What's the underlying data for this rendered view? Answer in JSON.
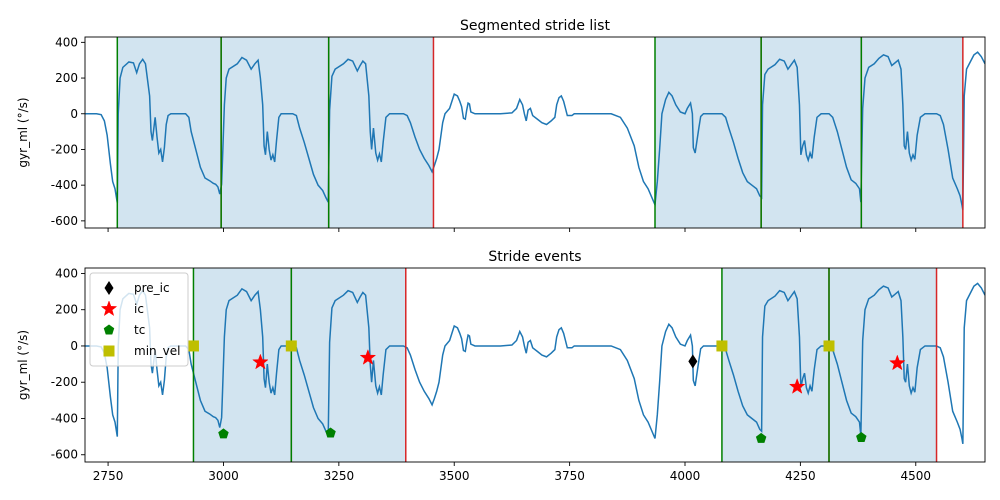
{
  "colors": {
    "signal": "#1f77b4",
    "stride_fill": "#1f77b4",
    "start_line": "#008000",
    "end_line": "#d62728",
    "pre_ic": "#000000",
    "ic": "#ff0000",
    "tc": "#008000",
    "min_vel": "#bfbf00"
  },
  "chart_data": [
    {
      "type": "line",
      "title": "Segmented stride list",
      "ylabel": "gyr_ml (°/s)",
      "xlabel": "",
      "xlim": [
        2700,
        4650
      ],
      "ylim": [
        -640,
        430
      ],
      "yticks": [
        400,
        200,
        0,
        -200,
        -400,
        -600
      ],
      "xticks": [
        2750,
        3000,
        3250,
        3500,
        3750,
        4000,
        4250,
        4500
      ],
      "show_xtick_labels": false,
      "grid": false,
      "strides": [
        {
          "start": 2770,
          "end": 2995
        },
        {
          "start": 2995,
          "end": 3228
        },
        {
          "start": 3228,
          "end": 3455
        },
        {
          "start": 3935,
          "end": 4165
        },
        {
          "start": 4165,
          "end": 4382
        },
        {
          "start": 4382,
          "end": 4602
        }
      ]
    },
    {
      "type": "line",
      "title": "Stride events",
      "ylabel": "gyr_ml (°/s)",
      "xlabel": "",
      "xlim": [
        2700,
        4650
      ],
      "ylim": [
        -640,
        430
      ],
      "yticks": [
        400,
        200,
        0,
        -200,
        -400,
        -600
      ],
      "xticks": [
        2750,
        3000,
        3250,
        3500,
        3750,
        4000,
        4250,
        4500
      ],
      "show_xtick_labels": true,
      "grid": false,
      "legend_placement": "upper-left",
      "legend": [
        "pre_ic",
        "ic",
        "tc",
        "min_vel"
      ],
      "strides": [
        {
          "start": 2935,
          "end": 3147
        },
        {
          "start": 3147,
          "end": 3395
        },
        {
          "start": 4080,
          "end": 4312
        },
        {
          "start": 4312,
          "end": 4545
        }
      ],
      "events": {
        "pre_ic": [
          {
            "x": 4017,
            "y": -85
          }
        ],
        "ic": [
          {
            "x": 3080,
            "y": -90
          },
          {
            "x": 3313,
            "y": -65
          },
          {
            "x": 4243,
            "y": -225
          },
          {
            "x": 4460,
            "y": -95
          }
        ],
        "tc": [
          {
            "x": 3000,
            "y": -485
          },
          {
            "x": 3232,
            "y": -480
          },
          {
            "x": 4165,
            "y": -510
          },
          {
            "x": 4382,
            "y": -505
          }
        ],
        "min_vel": [
          {
            "x": 2935,
            "y": 0
          },
          {
            "x": 3147,
            "y": 0
          },
          {
            "x": 4080,
            "y": 0
          },
          {
            "x": 4312,
            "y": 0
          }
        ]
      }
    }
  ],
  "signal": {
    "name": "gyr_ml",
    "points": [
      [
        2700,
        0
      ],
      [
        2725,
        0
      ],
      [
        2735,
        -5
      ],
      [
        2742,
        -40
      ],
      [
        2748,
        -120
      ],
      [
        2755,
        -280
      ],
      [
        2760,
        -380
      ],
      [
        2765,
        -420
      ],
      [
        2770,
        -500
      ],
      [
        2772,
        0
      ],
      [
        2776,
        200
      ],
      [
        2782,
        260
      ],
      [
        2795,
        290
      ],
      [
        2805,
        285
      ],
      [
        2812,
        230
      ],
      [
        2818,
        280
      ],
      [
        2825,
        305
      ],
      [
        2831,
        280
      ],
      [
        2840,
        100
      ],
      [
        2843,
        -100
      ],
      [
        2846,
        -150
      ],
      [
        2852,
        -20
      ],
      [
        2856,
        -130
      ],
      [
        2860,
        -220
      ],
      [
        2864,
        -200
      ],
      [
        2868,
        -270
      ],
      [
        2872,
        -190
      ],
      [
        2876,
        -60
      ],
      [
        2880,
        -10
      ],
      [
        2886,
        0
      ],
      [
        2900,
        0
      ],
      [
        2918,
        0
      ],
      [
        2925,
        -20
      ],
      [
        2930,
        -100
      ],
      [
        2940,
        -200
      ],
      [
        2950,
        -300
      ],
      [
        2960,
        -360
      ],
      [
        2970,
        -375
      ],
      [
        2978,
        -390
      ],
      [
        2983,
        -395
      ],
      [
        2988,
        -410
      ],
      [
        2992,
        -450
      ],
      [
        2996,
        -395
      ],
      [
        2998,
        -250
      ],
      [
        3002,
        50
      ],
      [
        3006,
        200
      ],
      [
        3012,
        250
      ],
      [
        3030,
        280
      ],
      [
        3040,
        315
      ],
      [
        3050,
        300
      ],
      [
        3060,
        250
      ],
      [
        3068,
        280
      ],
      [
        3075,
        300
      ],
      [
        3080,
        200
      ],
      [
        3085,
        50
      ],
      [
        3088,
        -180
      ],
      [
        3091,
        -230
      ],
      [
        3095,
        -100
      ],
      [
        3099,
        -200
      ],
      [
        3103,
        -260
      ],
      [
        3107,
        -230
      ],
      [
        3111,
        -270
      ],
      [
        3115,
        -150
      ],
      [
        3120,
        -20
      ],
      [
        3125,
        0
      ],
      [
        3140,
        0
      ],
      [
        3150,
        0
      ],
      [
        3158,
        -10
      ],
      [
        3165,
        -80
      ],
      [
        3175,
        -160
      ],
      [
        3185,
        -250
      ],
      [
        3195,
        -340
      ],
      [
        3205,
        -400
      ],
      [
        3215,
        -430
      ],
      [
        3222,
        -470
      ],
      [
        3227,
        -495
      ],
      [
        3230,
        20
      ],
      [
        3235,
        210
      ],
      [
        3242,
        250
      ],
      [
        3260,
        280
      ],
      [
        3270,
        305
      ],
      [
        3280,
        295
      ],
      [
        3290,
        240
      ],
      [
        3296,
        270
      ],
      [
        3302,
        295
      ],
      [
        3308,
        280
      ],
      [
        3315,
        100
      ],
      [
        3318,
        -100
      ],
      [
        3321,
        -200
      ],
      [
        3325,
        -80
      ],
      [
        3330,
        -220
      ],
      [
        3334,
        -260
      ],
      [
        3338,
        -225
      ],
      [
        3342,
        -270
      ],
      [
        3346,
        -160
      ],
      [
        3352,
        -20
      ],
      [
        3360,
        0
      ],
      [
        3390,
        0
      ],
      [
        3398,
        -10
      ],
      [
        3405,
        -50
      ],
      [
        3415,
        -130
      ],
      [
        3425,
        -200
      ],
      [
        3435,
        -250
      ],
      [
        3445,
        -290
      ],
      [
        3452,
        -325
      ],
      [
        3457,
        -290
      ],
      [
        3462,
        -250
      ],
      [
        3467,
        -200
      ],
      [
        3475,
        -50
      ],
      [
        3480,
        0
      ],
      [
        3490,
        30
      ],
      [
        3495,
        70
      ],
      [
        3500,
        110
      ],
      [
        3507,
        100
      ],
      [
        3512,
        70
      ],
      [
        3516,
        40
      ],
      [
        3520,
        -25
      ],
      [
        3524,
        -30
      ],
      [
        3527,
        20
      ],
      [
        3530,
        60
      ],
      [
        3533,
        55
      ],
      [
        3536,
        10
      ],
      [
        3545,
        0
      ],
      [
        3600,
        0
      ],
      [
        3625,
        5
      ],
      [
        3635,
        30
      ],
      [
        3642,
        80
      ],
      [
        3648,
        50
      ],
      [
        3652,
        0
      ],
      [
        3656,
        -40
      ],
      [
        3660,
        20
      ],
      [
        3665,
        30
      ],
      [
        3670,
        -10
      ],
      [
        3680,
        -30
      ],
      [
        3690,
        -50
      ],
      [
        3700,
        -60
      ],
      [
        3710,
        -40
      ],
      [
        3718,
        -20
      ],
      [
        3722,
        50
      ],
      [
        3727,
        90
      ],
      [
        3732,
        100
      ],
      [
        3737,
        70
      ],
      [
        3740,
        40
      ],
      [
        3745,
        -10
      ],
      [
        3755,
        -10
      ],
      [
        3760,
        0
      ],
      [
        3800,
        0
      ],
      [
        3840,
        0
      ],
      [
        3860,
        -20
      ],
      [
        3875,
        -80
      ],
      [
        3890,
        -180
      ],
      [
        3900,
        -300
      ],
      [
        3910,
        -380
      ],
      [
        3920,
        -420
      ],
      [
        3930,
        -480
      ],
      [
        3935,
        -510
      ],
      [
        3940,
        -380
      ],
      [
        3945,
        -200
      ],
      [
        3950,
        0
      ],
      [
        3958,
        80
      ],
      [
        3965,
        120
      ],
      [
        3972,
        100
      ],
      [
        3980,
        50
      ],
      [
        3990,
        10
      ],
      [
        4000,
        0
      ],
      [
        4005,
        30
      ],
      [
        4012,
        60
      ],
      [
        4016,
        0
      ],
      [
        4018,
        -190
      ],
      [
        4022,
        -220
      ],
      [
        4026,
        -150
      ],
      [
        4030,
        -80
      ],
      [
        4034,
        -15
      ],
      [
        4040,
        0
      ],
      [
        4060,
        0
      ],
      [
        4080,
        0
      ],
      [
        4088,
        -20
      ],
      [
        4095,
        -80
      ],
      [
        4105,
        -160
      ],
      [
        4115,
        -250
      ],
      [
        4125,
        -330
      ],
      [
        4135,
        -380
      ],
      [
        4145,
        -400
      ],
      [
        4155,
        -420
      ],
      [
        4162,
        -460
      ],
      [
        4166,
        -470
      ],
      [
        4168,
        50
      ],
      [
        4173,
        220
      ],
      [
        4180,
        250
      ],
      [
        4195,
        275
      ],
      [
        4205,
        305
      ],
      [
        4215,
        295
      ],
      [
        4223,
        250
      ],
      [
        4230,
        275
      ],
      [
        4237,
        300
      ],
      [
        4243,
        260
      ],
      [
        4248,
        50
      ],
      [
        4251,
        -230
      ],
      [
        4255,
        -180
      ],
      [
        4259,
        -150
      ],
      [
        4263,
        -230
      ],
      [
        4267,
        -260
      ],
      [
        4271,
        -220
      ],
      [
        4275,
        -250
      ],
      [
        4280,
        -130
      ],
      [
        4286,
        -20
      ],
      [
        4295,
        0
      ],
      [
        4312,
        0
      ],
      [
        4320,
        -20
      ],
      [
        4330,
        -100
      ],
      [
        4340,
        -200
      ],
      [
        4350,
        -300
      ],
      [
        4360,
        -370
      ],
      [
        4370,
        -390
      ],
      [
        4378,
        -420
      ],
      [
        4381,
        -495
      ],
      [
        4385,
        30
      ],
      [
        4390,
        200
      ],
      [
        4398,
        260
      ],
      [
        4410,
        280
      ],
      [
        4420,
        310
      ],
      [
        4430,
        330
      ],
      [
        4440,
        320
      ],
      [
        4448,
        270
      ],
      [
        4455,
        285
      ],
      [
        4462,
        300
      ],
      [
        4468,
        250
      ],
      [
        4472,
        50
      ],
      [
        4475,
        -180
      ],
      [
        4478,
        -200
      ],
      [
        4482,
        -100
      ],
      [
        4486,
        -220
      ],
      [
        4490,
        -260
      ],
      [
        4494,
        -230
      ],
      [
        4498,
        -255
      ],
      [
        4503,
        -120
      ],
      [
        4510,
        -20
      ],
      [
        4520,
        0
      ],
      [
        4545,
        0
      ],
      [
        4553,
        -10
      ],
      [
        4560,
        -60
      ],
      [
        4570,
        -200
      ],
      [
        4580,
        -360
      ],
      [
        4590,
        -420
      ],
      [
        4596,
        -460
      ],
      [
        4600,
        -510
      ],
      [
        4602,
        -540
      ],
      [
        4605,
        100
      ],
      [
        4610,
        250
      ],
      [
        4618,
        290
      ],
      [
        4626,
        330
      ],
      [
        4634,
        345
      ],
      [
        4642,
        320
      ],
      [
        4650,
        280
      ]
    ]
  }
}
